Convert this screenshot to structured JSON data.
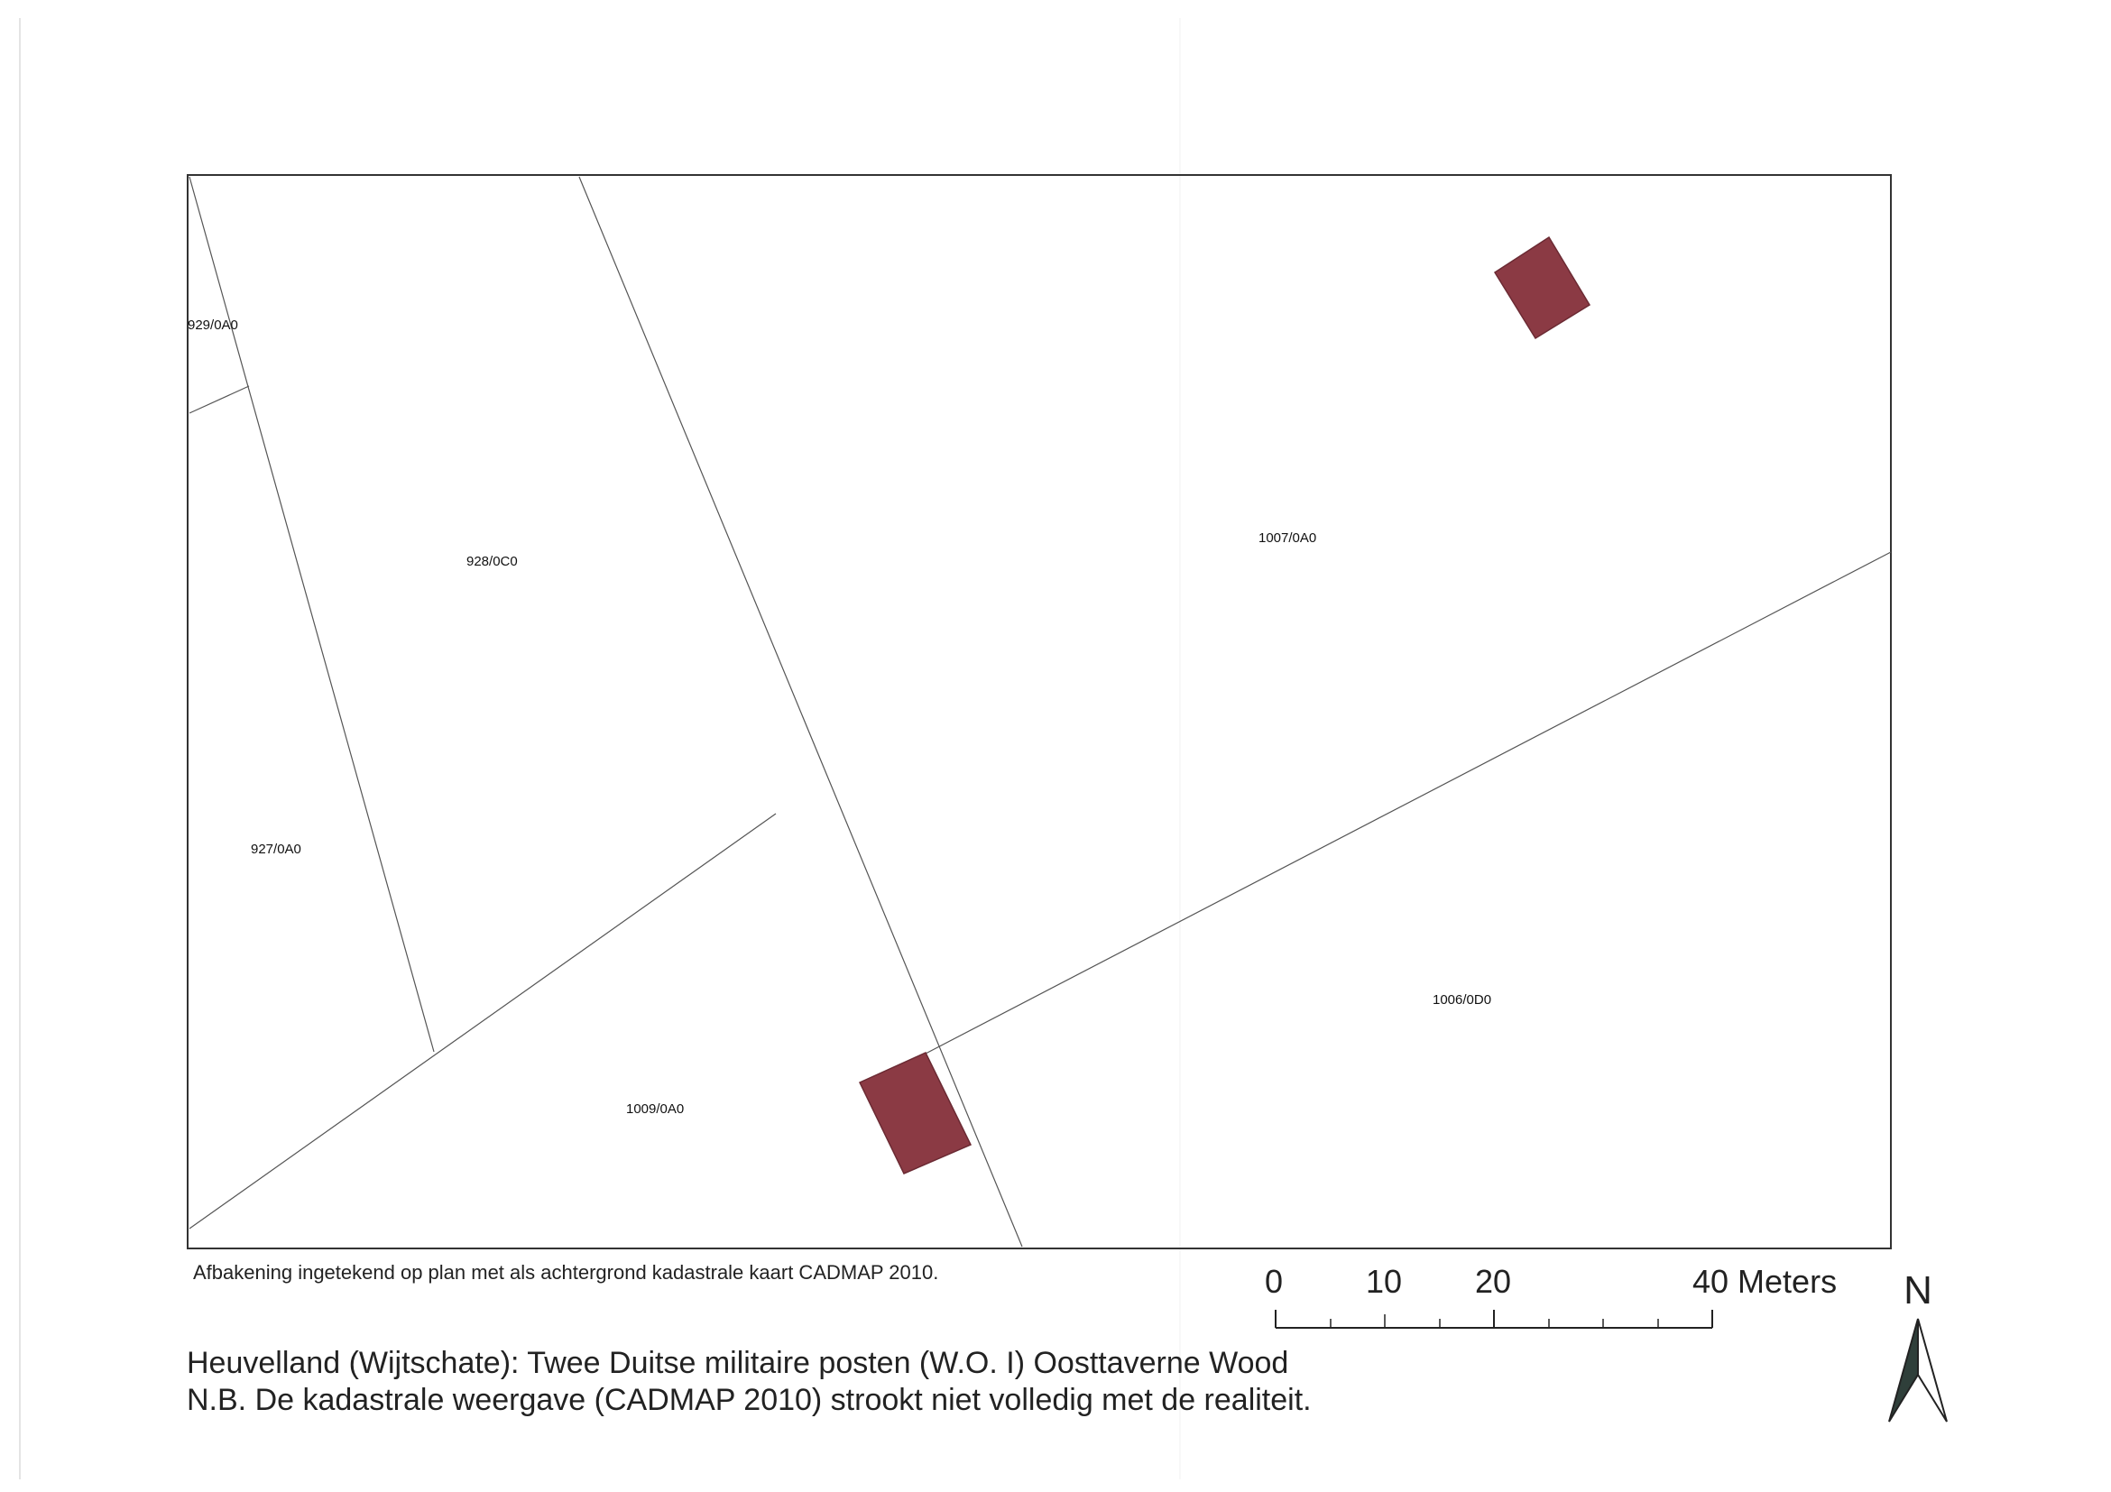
{
  "parcels": [
    {
      "id": "929/0A0"
    },
    {
      "id": "928/0C0"
    },
    {
      "id": "1007/0A0"
    },
    {
      "id": "927/0A0"
    },
    {
      "id": "1006/0D0"
    },
    {
      "id": "1009/0A0"
    }
  ],
  "caption": "Afbakening ingetekend op plan met als achtergrond kadastrale kaart CADMAP 2010.",
  "title": {
    "line1": "Heuvelland (Wijtschate): Twee Duitse militaire posten (W.O. I) Oosttaverne Wood",
    "line2": "N.B. De kadastrale weergave (CADMAP 2010) strookt niet volledig met de realiteit."
  },
  "scale_bar": {
    "labels": [
      "0",
      "10",
      "20",
      "40 Meters"
    ],
    "values": [
      0,
      10,
      20,
      40
    ],
    "unit": "Meters"
  },
  "north_arrow": {
    "letter": "N",
    "icon": "north-arrow-icon"
  },
  "colors": {
    "feature_fill": "#8b3a44",
    "feature_stroke": "#6b2a33",
    "parcel_line": "#555555",
    "frame": "#333333"
  }
}
